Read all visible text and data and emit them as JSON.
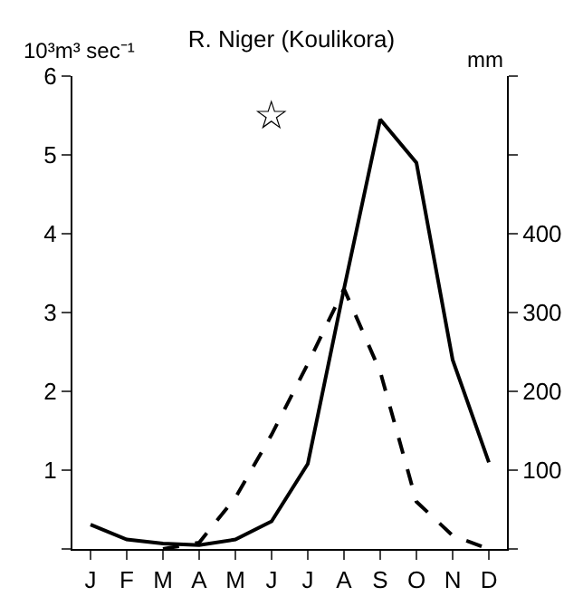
{
  "chart_data": {
    "type": "line",
    "title": "R. Niger (Koulikora)",
    "ylabel": "10³m³ sec⁻¹",
    "y2label": "mm",
    "annotations": [
      "☆"
    ],
    "categories": [
      "J",
      "F",
      "M",
      "A",
      "M",
      "J",
      "J",
      "A",
      "S",
      "O",
      "N",
      "D"
    ],
    "series": [
      {
        "color": "#000000",
        "line_style": "solid",
        "values": [
          0.31,
          0.12,
          0.07,
          0.05,
          0.12,
          0.35,
          1.08,
          3.3,
          5.45,
          4.9,
          2.4,
          1.1
        ]
      },
      {
        "color": "#000000",
        "line_style": "dashed",
        "axis": "y2",
        "values": [
          null,
          null,
          0,
          8,
          65,
          145,
          235,
          330,
          225,
          60,
          17,
          0
        ]
      }
    ],
    "ylim": [
      0,
      6
    ],
    "yticks": [
      {
        "value": 0,
        "label": null
      },
      1,
      2,
      3,
      4,
      5,
      6
    ],
    "y2lim": [
      0,
      600
    ],
    "y2ticks": [
      {
        "value": 0,
        "label": null
      },
      100,
      200,
      300,
      400,
      {
        "value": 500,
        "label": null
      },
      {
        "value": 600,
        "label": null
      }
    ],
    "marker": "none",
    "legend": false
  }
}
